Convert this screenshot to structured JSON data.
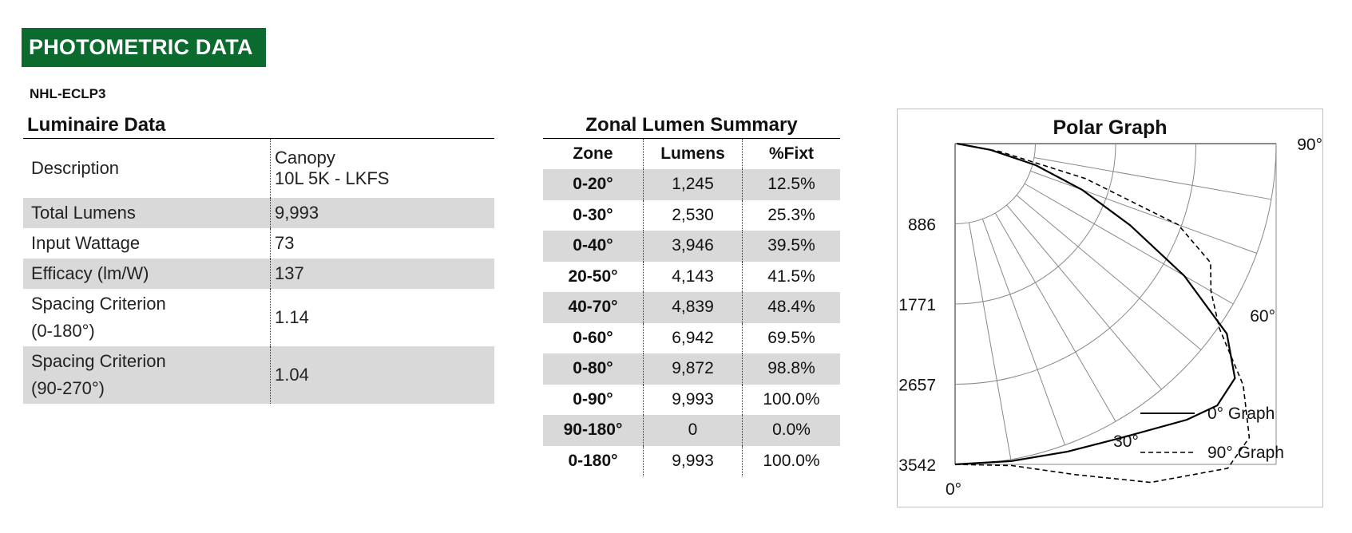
{
  "header": {
    "banner": "PHOTOMETRIC DATA",
    "model": "NHL-ECLP3"
  },
  "luminaire": {
    "title": "Luminaire Data",
    "description_label": "Description",
    "description_line1": "Canopy",
    "description_line2": "10L 5K - LKFS",
    "total_lumens_label": "Total Lumens",
    "total_lumens": "9,993",
    "input_wattage_label": "Input Wattage",
    "input_wattage": "73",
    "efficacy_label": "Efficacy (lm/W)",
    "efficacy": "137",
    "sc1_label_line1": "Spacing Criterion",
    "sc1_label_line2": "(0-180°)",
    "sc1": "1.14",
    "sc2_label_line1": "Spacing Criterion",
    "sc2_label_line2": "(90-270°)",
    "sc2": "1.04"
  },
  "zonal": {
    "title": "Zonal Lumen Summary",
    "headers": [
      "Zone",
      "Lumens",
      "%Fixt"
    ],
    "rows": [
      {
        "zone": "0-20°",
        "lumens": "1,245",
        "pct": "12.5%"
      },
      {
        "zone": "0-30°",
        "lumens": "2,530",
        "pct": "25.3%"
      },
      {
        "zone": "0-40°",
        "lumens": "3,946",
        "pct": "39.5%"
      },
      {
        "zone": "20-50°",
        "lumens": "4,143",
        "pct": "41.5%"
      },
      {
        "zone": "40-70°",
        "lumens": "4,839",
        "pct": "48.4%"
      },
      {
        "zone": "0-60°",
        "lumens": "6,942",
        "pct": "69.5%"
      },
      {
        "zone": "0-80°",
        "lumens": "9,872",
        "pct": "98.8%"
      },
      {
        "zone": "0-90°",
        "lumens": "9,993",
        "pct": "100.0%"
      },
      {
        "zone": "90-180°",
        "lumens": "0",
        "pct": "0.0%"
      },
      {
        "zone": "0-180°",
        "lumens": "9,993",
        "pct": "100.0%"
      }
    ]
  },
  "chart_data": {
    "type": "polar",
    "title": "Polar Graph",
    "radial_ticks": [
      "886",
      "1771",
      "2657",
      "3542"
    ],
    "radial_max": 3542,
    "angle_labels": [
      "0°",
      "30°",
      "60°",
      "90°"
    ],
    "legend": [
      "0° Graph",
      "90° Graph"
    ],
    "series": [
      {
        "name": "0° Graph",
        "style": "solid",
        "color": "#000000",
        "angles_deg": [
          0,
          10,
          20,
          30,
          40,
          45,
          50,
          55,
          60,
          65,
          70,
          75,
          80,
          90
        ],
        "candela": [
          3542,
          3560,
          3620,
          3740,
          3980,
          4090,
          4030,
          3660,
          2920,
          2130,
          1490,
          920,
          400,
          20
        ]
      },
      {
        "name": "90° Graph",
        "style": "dashed",
        "color": "#000000",
        "angles_deg": [
          0,
          10,
          20,
          30,
          40,
          45,
          50,
          55,
          60,
          65,
          70,
          75,
          80,
          90
        ],
        "candela": [
          3542,
          3610,
          3890,
          4320,
          4680,
          4590,
          4150,
          3560,
          3260,
          3110,
          2620,
          1490,
          500,
          20
        ]
      }
    ]
  }
}
